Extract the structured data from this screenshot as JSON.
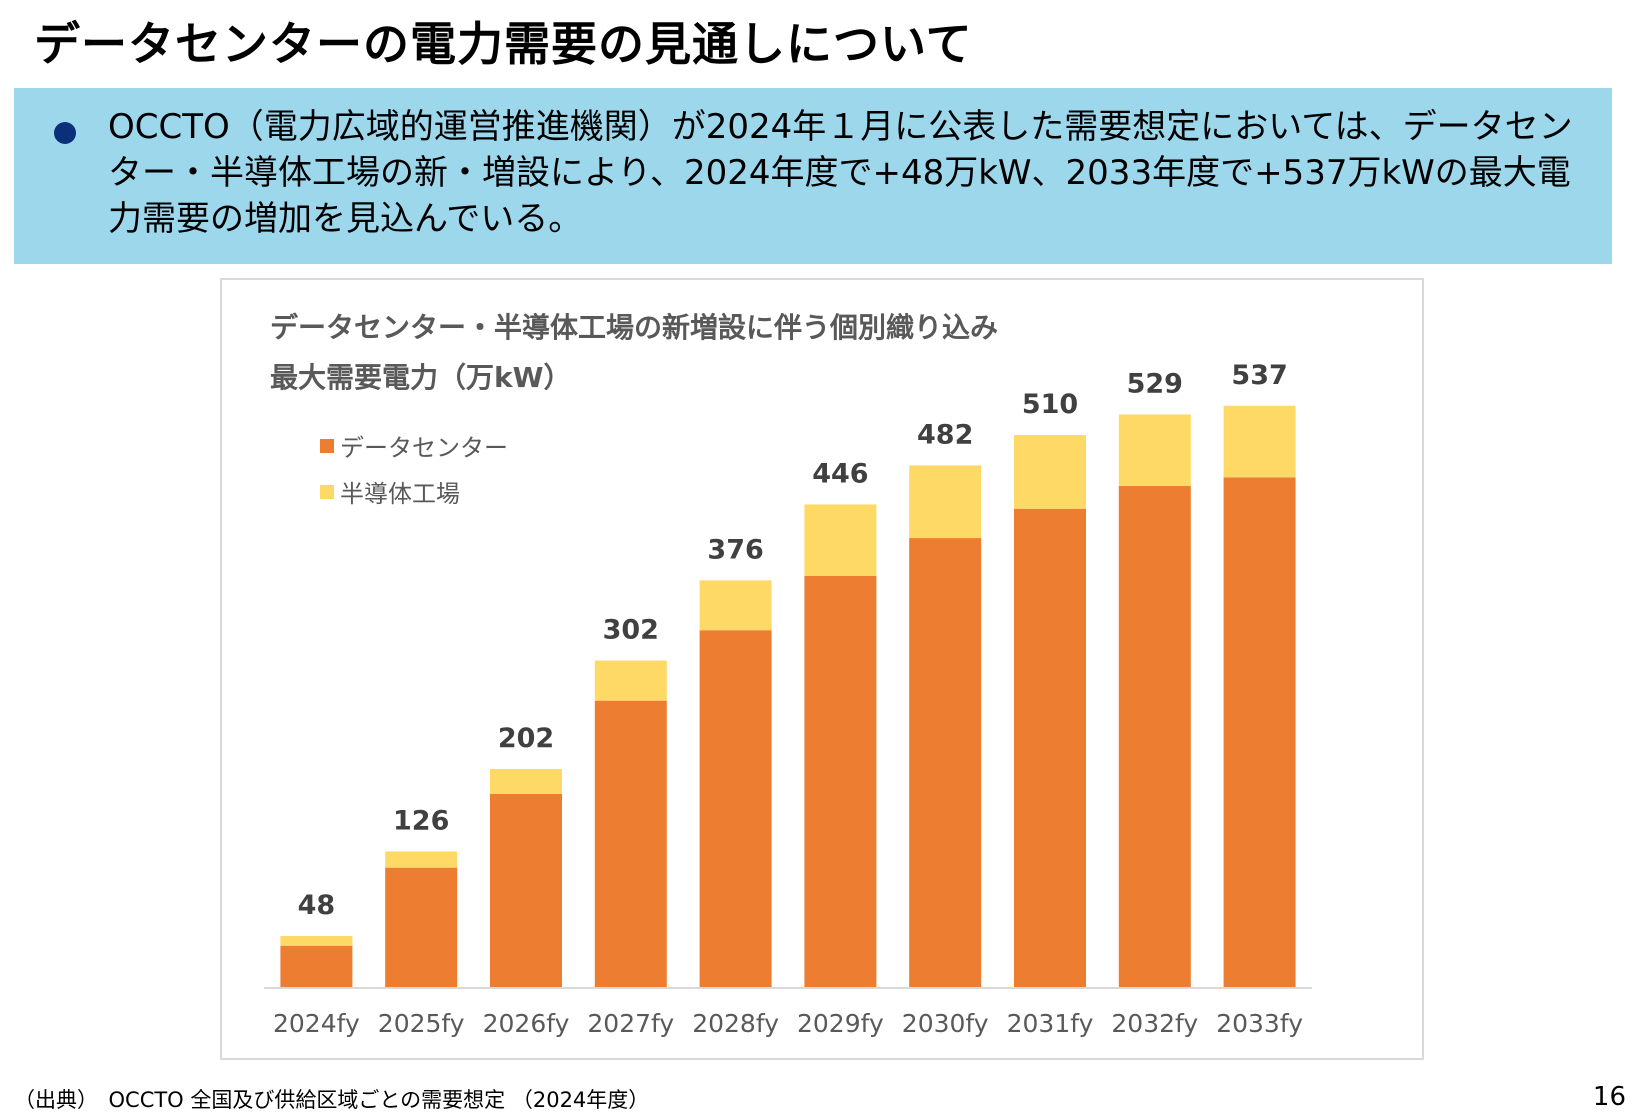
{
  "title": "データセンターの電力需要の見通しについて",
  "bullet": "OCCTO（電力広域的運営推進機関）が2024年１月に公表した需要想定においては、データセンター・半導体工場の新・増設により、2024年度で+48万kW、2033年度で+537万kWの最大電力需要の増加を見込んでいる。",
  "chart_data": {
    "type": "bar",
    "stacked": true,
    "title_line1": "データセンター・半導体工場の新増設に伴う個別織り込み",
    "title_line2": "最大需要電力（万kW）",
    "categories": [
      "2024fy",
      "2025fy",
      "2026fy",
      "2027fy",
      "2028fy",
      "2029fy",
      "2030fy",
      "2031fy",
      "2032fy",
      "2033fy"
    ],
    "series": [
      {
        "name": "データセンター",
        "color": "#ed7d31",
        "values": [
          39,
          111,
          179,
          265,
          330,
          380,
          415,
          442,
          463,
          471
        ]
      },
      {
        "name": "半導体工場",
        "color": "#ffd966",
        "values": [
          9,
          15,
          23,
          37,
          46,
          66,
          67,
          68,
          66,
          66
        ]
      }
    ],
    "totals": [
      48,
      126,
      202,
      302,
      376,
      446,
      482,
      510,
      529,
      537
    ],
    "ylim": [
      0,
      570
    ],
    "grid": false,
    "legend_position": "top-left"
  },
  "footer": {
    "source": "（出典）　OCCTO 全国及び供給区域ごとの需要想定 （2024年度）",
    "page": "16"
  }
}
